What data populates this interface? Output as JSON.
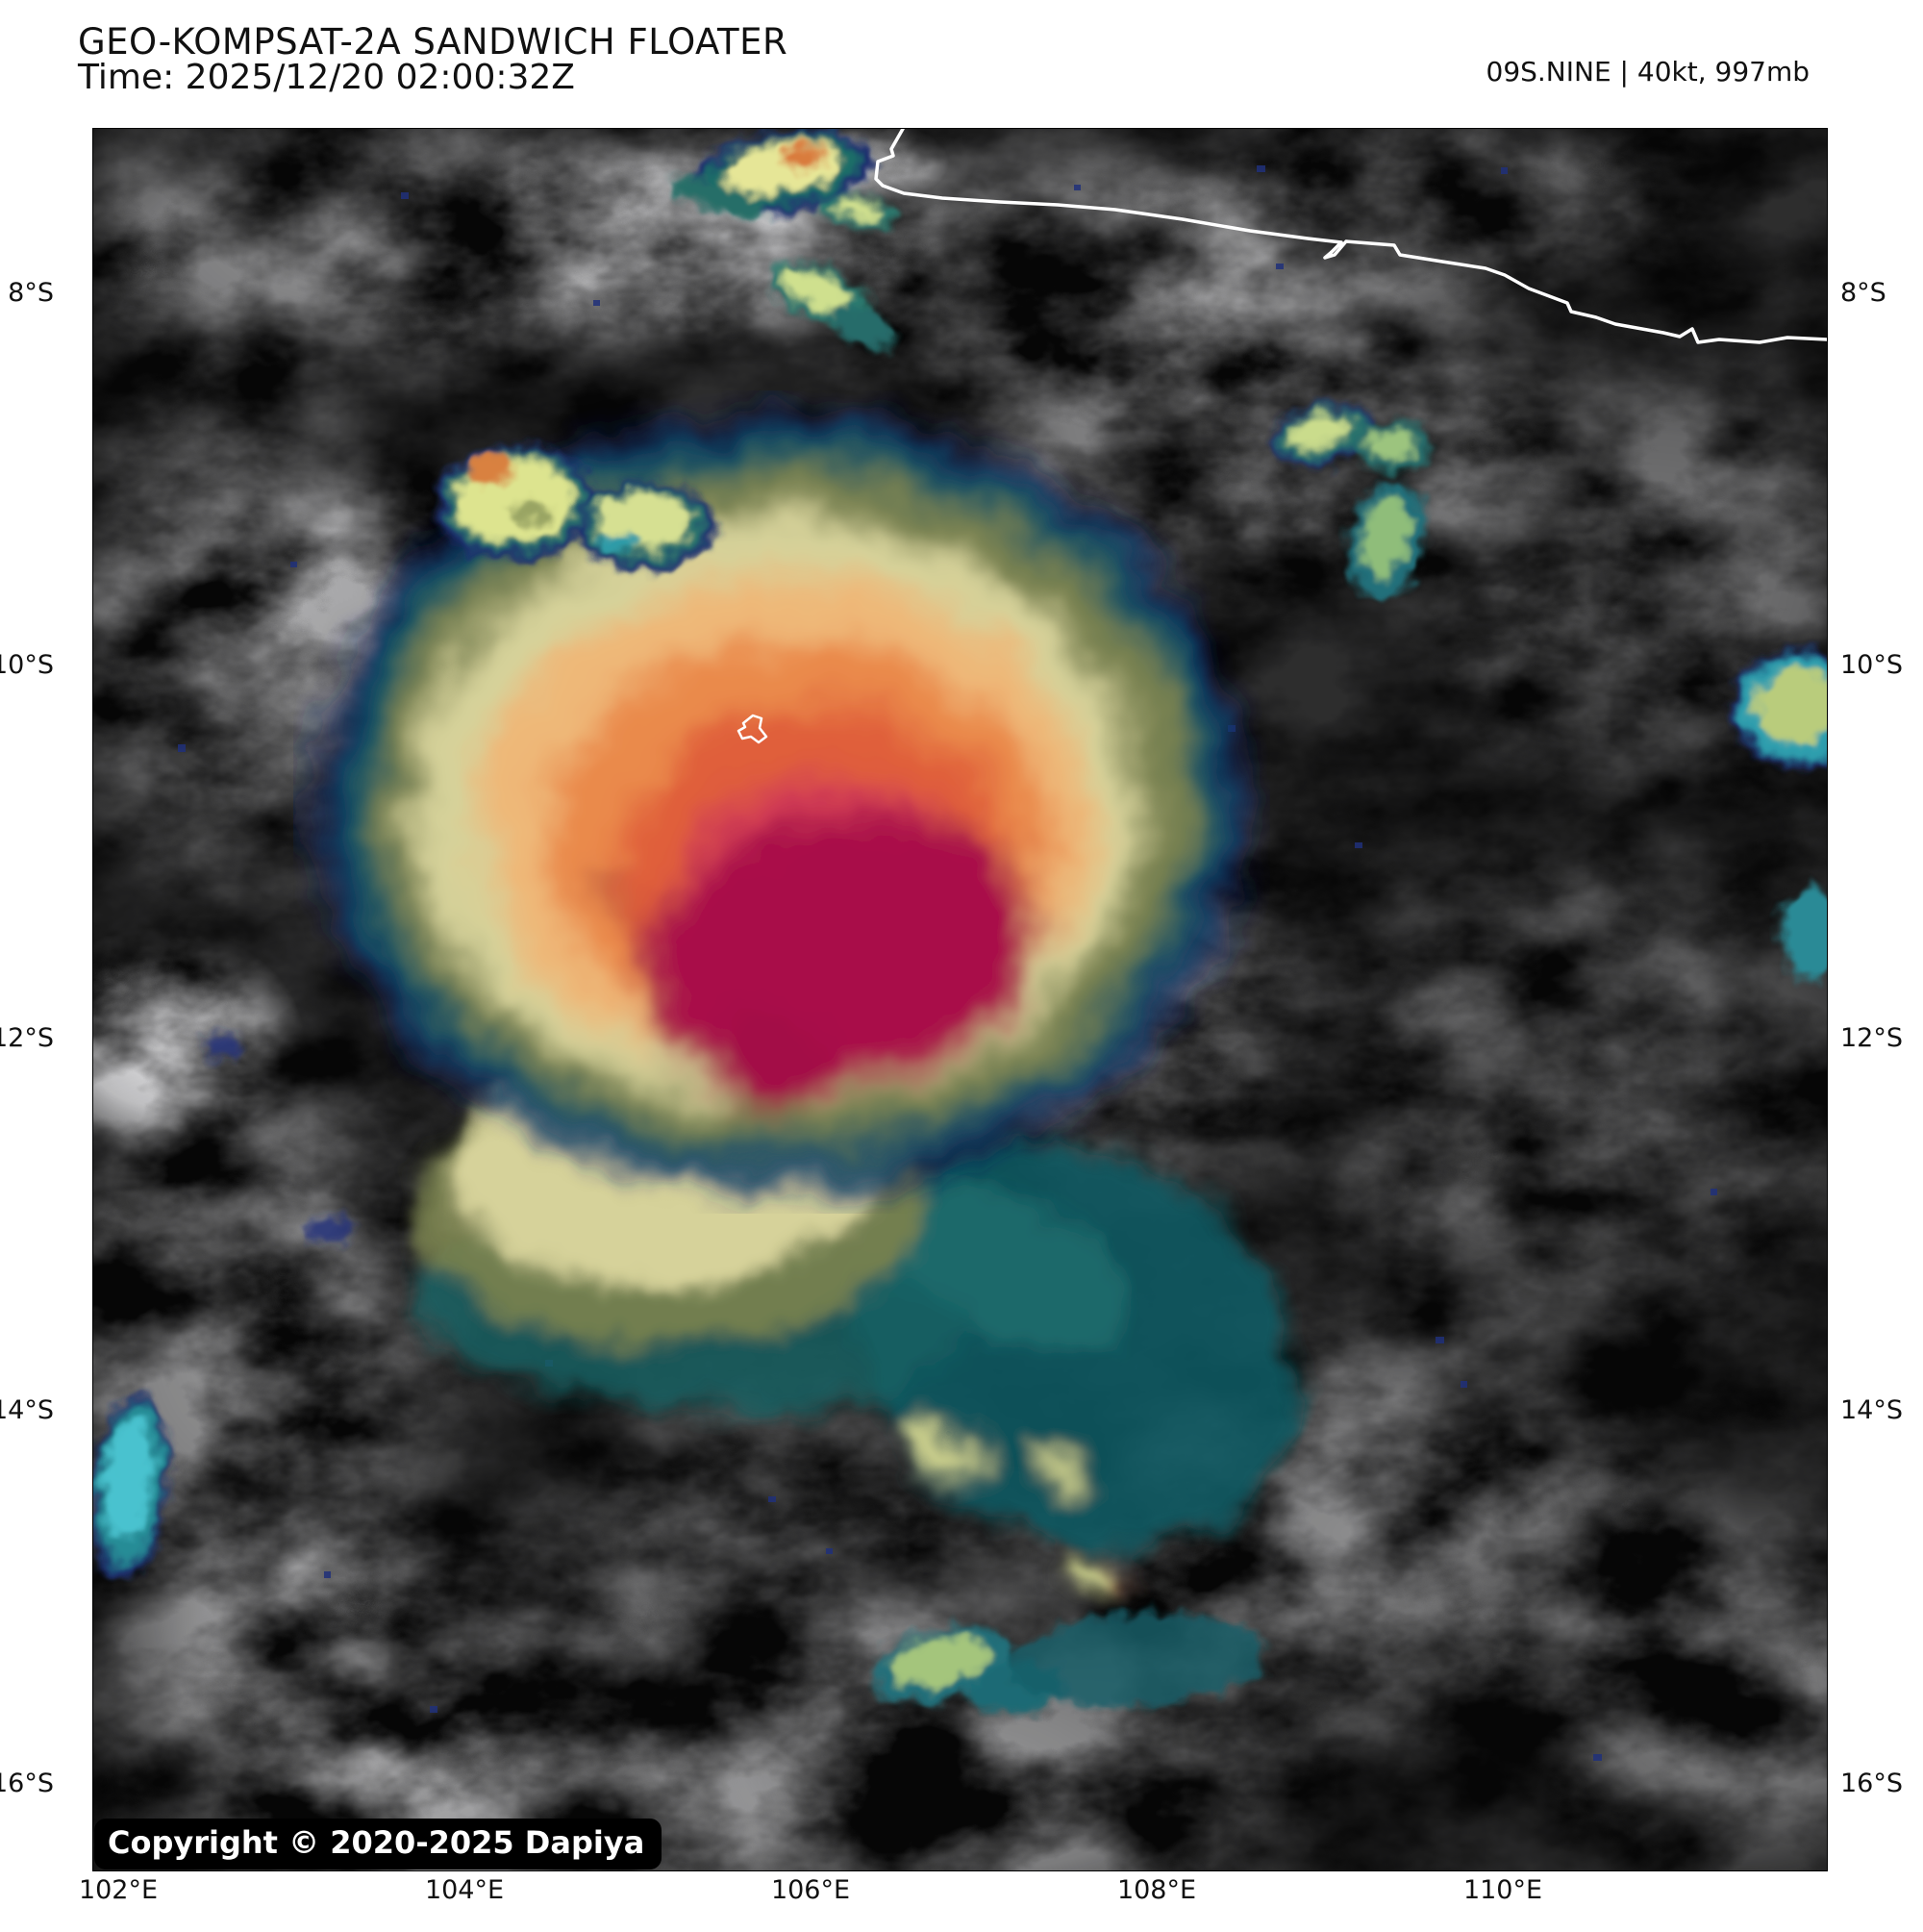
{
  "header": {
    "title": "GEO-KOMPSAT-2A SANDWICH FLOATER",
    "time_label": "Time: 2025/12/20 02:00:32Z",
    "storm_status": "09S.NINE | 40kt, 997mb"
  },
  "map": {
    "type": "satellite-sandwich-ir-floater",
    "lat_labels": [
      "8°S",
      "10°S",
      "12°S",
      "14°S",
      "16°S"
    ],
    "lon_labels": [
      "102°E",
      "104°E",
      "106°E",
      "108°E",
      "110°E"
    ],
    "copyright": "Copyright © 2020-2025 Dapiya",
    "features": {
      "coastline": "java-south-coast",
      "island": "small-island-outline",
      "storm": "tropical-cyclone-cold-cloud-shield"
    },
    "palette": {
      "background": "#060606",
      "cloud_gray": "#d2d2d4",
      "cold_edge_navy": "#1c2f6e",
      "cold_teal": "#0e5a60",
      "olive": "#78814f",
      "khaki": "#d6d29a",
      "peach": "#eeb878",
      "orange": "#ea8a4c",
      "deep_orange": "#e05e3b",
      "red": "#d23b55",
      "core_magenta": "#a90e4a",
      "coastline_white": "#ffffff"
    }
  }
}
